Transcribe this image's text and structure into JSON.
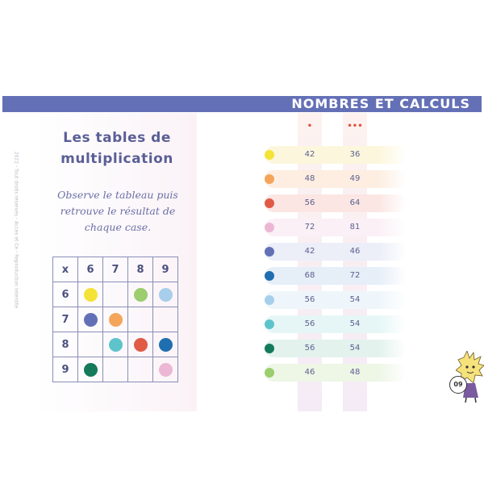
{
  "header": {
    "section_title": "NOMBRES ET CALCULS"
  },
  "sidebar_note": "2022 - Tout droits réservés - Acces et Ce - Reproduction interdite",
  "lesson": {
    "title_line1": "Les tables de",
    "title_line2": "multiplication",
    "instruction_line1": "Observe le tableau puis",
    "instruction_line2": "retrouve le résultat de",
    "instruction_line3": "chaque case."
  },
  "grid": {
    "corner": "x",
    "columns": [
      "6",
      "7",
      "8",
      "9"
    ],
    "rows": [
      {
        "label": "6",
        "cells": [
          "#f4e337",
          null,
          "#9ccd6e",
          "#a7ceea"
        ]
      },
      {
        "label": "7",
        "cells": [
          "#6470b6",
          "#f4a55a",
          null,
          null
        ]
      },
      {
        "label": "8",
        "cells": [
          null,
          "#5ec4cc",
          "#e05a45",
          "#1f6fb0"
        ]
      },
      {
        "label": "9",
        "cells": [
          "#147a5a",
          null,
          null,
          "#ecb7d4"
        ]
      }
    ]
  },
  "answers": {
    "column_markers": [
      "•",
      "•••"
    ],
    "rows": [
      {
        "dot": "#f4e337",
        "bg": "#fcf7dc",
        "values": [
          "42",
          "36"
        ]
      },
      {
        "dot": "#f4a55a",
        "bg": "#fdeee1",
        "values": [
          "48",
          "49"
        ]
      },
      {
        "dot": "#e05a45",
        "bg": "#fbe6e3",
        "values": [
          "56",
          "64"
        ]
      },
      {
        "dot": "#ecb7d4",
        "bg": "#fbf0f6",
        "values": [
          "72",
          "81"
        ]
      },
      {
        "dot": "#6470b6",
        "bg": "#eceef8",
        "values": [
          "42",
          "46"
        ]
      },
      {
        "dot": "#1f6fb0",
        "bg": "#e6eef8",
        "values": [
          "68",
          "72"
        ]
      },
      {
        "dot": "#a7ceea",
        "bg": "#eef6fb",
        "values": [
          "56",
          "54"
        ]
      },
      {
        "dot": "#5ec4cc",
        "bg": "#e6f6f6",
        "values": [
          "56",
          "54"
        ]
      },
      {
        "dot": "#147a5a",
        "bg": "#e3f2ed",
        "values": [
          "56",
          "54"
        ]
      },
      {
        "dot": "#9ccd6e",
        "bg": "#eef6e6",
        "values": [
          "46",
          "48"
        ]
      }
    ]
  },
  "page_number": "09"
}
